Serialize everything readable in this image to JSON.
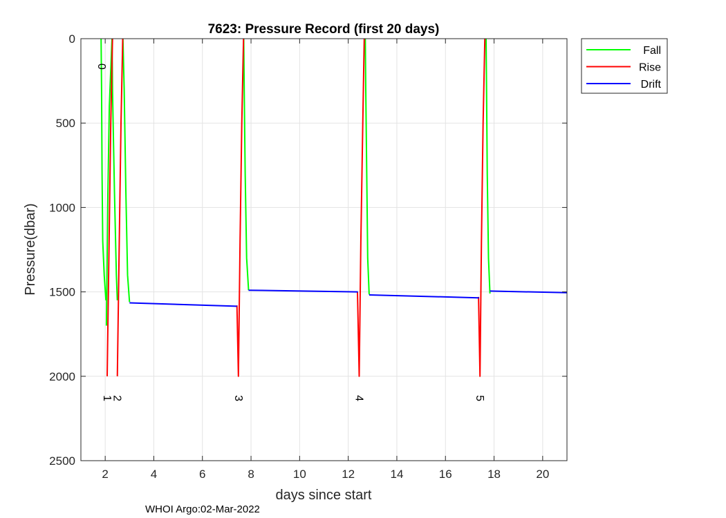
{
  "chart_data": {
    "type": "line",
    "title": "7623: Pressure Record (first 20 days)",
    "xlabel": "days since start",
    "ylabel": "Pressure(dbar)",
    "xlim": [
      1,
      21
    ],
    "ylim": [
      0,
      2500
    ],
    "y_reversed": true,
    "grid": true,
    "xticks": [
      2,
      4,
      6,
      8,
      10,
      12,
      14,
      16,
      18,
      20
    ],
    "yticks": [
      0,
      500,
      1000,
      1500,
      2000,
      2500
    ],
    "legend_position": "outside-top-right",
    "series": [
      {
        "name": "Fall",
        "color": "#00ff00",
        "segments": [
          [
            [
              1.83,
              0
            ],
            [
              1.85,
              300
            ],
            [
              1.87,
              800
            ],
            [
              1.9,
              1200
            ],
            [
              1.96,
              1400
            ],
            [
              2.03,
              1550
            ]
          ],
          [
            [
              2.05,
              1700
            ],
            [
              2.1,
              1000
            ],
            [
              2.17,
              400
            ],
            [
              2.28,
              0
            ]
          ],
          [
            [
              2.28,
              0
            ],
            [
              2.3,
              300
            ],
            [
              2.38,
              900
            ],
            [
              2.46,
              1400
            ],
            [
              2.5,
              1550
            ]
          ],
          [
            [
              2.73,
              0
            ],
            [
              2.78,
              300
            ],
            [
              2.85,
              900
            ],
            [
              2.92,
              1400
            ],
            [
              3.0,
              1560
            ]
          ],
          [
            [
              7.7,
              0
            ],
            [
              7.72,
              300
            ],
            [
              7.76,
              800
            ],
            [
              7.82,
              1300
            ],
            [
              7.9,
              1490
            ]
          ],
          [
            [
              12.7,
              0
            ],
            [
              12.72,
              300
            ],
            [
              12.76,
              800
            ],
            [
              12.8,
              1300
            ],
            [
              12.86,
              1515
            ]
          ],
          [
            [
              17.67,
              0
            ],
            [
              17.69,
              300
            ],
            [
              17.72,
              800
            ],
            [
              17.77,
              1300
            ],
            [
              17.83,
              1510
            ]
          ]
        ]
      },
      {
        "name": "Rise",
        "color": "#ff0000",
        "segments": [
          [
            [
              2.08,
              2000
            ],
            [
              2.16,
              1200
            ],
            [
              2.23,
              500
            ],
            [
              2.3,
              0
            ]
          ],
          [
            [
              2.5,
              2000
            ],
            [
              2.58,
              1200
            ],
            [
              2.65,
              500
            ],
            [
              2.72,
              0
            ]
          ],
          [
            [
              7.42,
              1580
            ],
            [
              7.48,
              2000
            ],
            [
              7.55,
              1200
            ],
            [
              7.62,
              500
            ],
            [
              7.69,
              0
            ]
          ],
          [
            [
              12.38,
              1500
            ],
            [
              12.45,
              2000
            ],
            [
              12.52,
              1200
            ],
            [
              12.6,
              500
            ],
            [
              12.66,
              0
            ]
          ],
          [
            [
              17.36,
              1530
            ],
            [
              17.42,
              2000
            ],
            [
              17.48,
              1200
            ],
            [
              17.55,
              500
            ],
            [
              17.62,
              0
            ]
          ]
        ]
      },
      {
        "name": "Drift",
        "color": "#0000ff",
        "segments": [
          [
            [
              3.0,
              1565
            ],
            [
              7.4,
              1585
            ],
            [
              7.42,
              1585
            ]
          ],
          [
            [
              7.9,
              1490
            ],
            [
              12.38,
              1500
            ],
            [
              12.4,
              1500
            ]
          ],
          [
            [
              12.86,
              1518
            ],
            [
              17.36,
              1535
            ],
            [
              17.38,
              1535
            ]
          ],
          [
            [
              17.83,
              1495
            ],
            [
              21.0,
              1505
            ]
          ]
        ]
      }
    ],
    "annotations": [
      {
        "text": "0",
        "x": 1.85,
        "y": 165
      },
      {
        "text": "1",
        "x": 2.08,
        "y": 2130
      },
      {
        "text": "2",
        "x": 2.5,
        "y": 2130
      },
      {
        "text": "3",
        "x": 7.48,
        "y": 2130
      },
      {
        "text": "4",
        "x": 12.45,
        "y": 2130
      },
      {
        "text": "5",
        "x": 17.42,
        "y": 2130
      }
    ]
  },
  "footer": "WHOI Argo:02-Mar-2022"
}
